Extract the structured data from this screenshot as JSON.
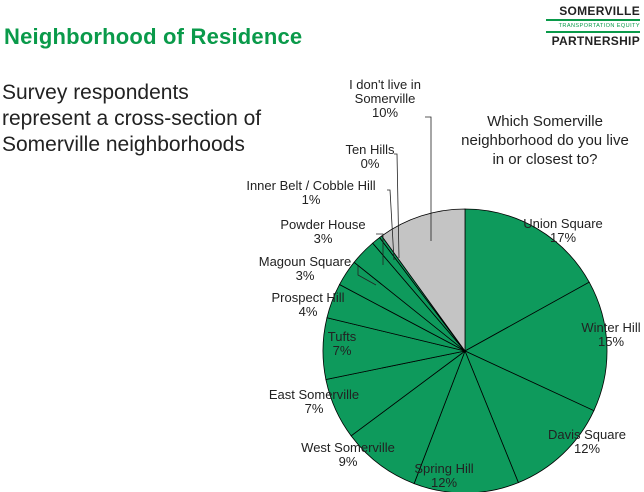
{
  "header": {
    "title": "Neighborhood of Residence",
    "logo": {
      "line1": "SOMERVILLE",
      "line2": "TRANSPORTATION EQUITY",
      "line3": "PARTNERSHIP"
    }
  },
  "headline": [
    "Survey respondents",
    "represent a cross-section of",
    "Somerville neighborhoods"
  ],
  "colors": {
    "accent": "#0a9a4a",
    "slice_fill": "#0e9a5c",
    "other_fill": "#c4c4c4",
    "stroke": "#000000"
  },
  "chart_data": {
    "type": "pie",
    "title": [
      "Which Somerville",
      "neighborhood do you live",
      "in or closest to?"
    ],
    "slices": [
      {
        "label": "Union Square",
        "value": 17,
        "value_label": "17%"
      },
      {
        "label": "Winter Hill",
        "value": 15,
        "value_label": "15%"
      },
      {
        "label": "Davis Square",
        "value": 12,
        "value_label": "12%"
      },
      {
        "label": "Spring Hill",
        "value": 12,
        "value_label": "12%"
      },
      {
        "label": "West Somerville",
        "value": 9,
        "value_label": "9%"
      },
      {
        "label": "East Somerville",
        "value": 7,
        "value_label": "7%"
      },
      {
        "label": "Tufts",
        "value": 7,
        "value_label": "7%"
      },
      {
        "label": "Prospect Hill",
        "value": 4,
        "value_label": "4%"
      },
      {
        "label": "Magoun Square",
        "value": 3,
        "value_label": "3%"
      },
      {
        "label": "Powder House",
        "value": 3,
        "value_label": "3%"
      },
      {
        "label": "Inner Belt / Cobble Hill",
        "value": 1,
        "value_label": "1%"
      },
      {
        "label": "Ten Hills",
        "value": 0.3,
        "value_label": "0%"
      },
      {
        "label": [
          "I don't live in",
          "Somerville"
        ],
        "value": 10,
        "value_label": "10%",
        "is_other": true
      }
    ]
  }
}
